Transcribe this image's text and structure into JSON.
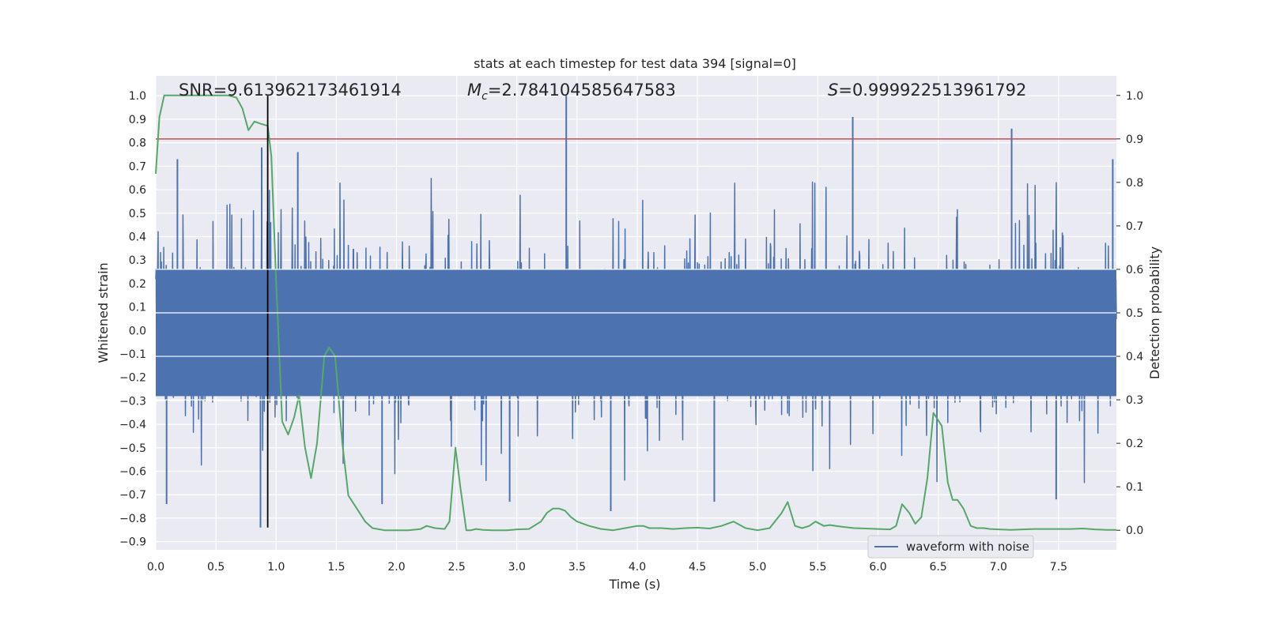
{
  "chart_data": {
    "type": "line",
    "title": "stats at each timestep for test data 394 [signal=0]",
    "xlabel": "Time (s)",
    "ylabel_left": "Whitened strain",
    "ylabel_right": "Detection probability",
    "xlim": [
      0.0,
      7.98
    ],
    "ylim_left": [
      -0.935,
      1.085
    ],
    "ylim_right": [
      -0.045,
      1.045
    ],
    "x_ticks": [
      "0.0",
      "0.5",
      "1.0",
      "1.5",
      "2.0",
      "2.5",
      "3.0",
      "3.5",
      "4.0",
      "4.5",
      "5.0",
      "5.5",
      "6.0",
      "6.5",
      "7.0",
      "7.5"
    ],
    "y_left_ticks": [
      "−0.9",
      "−0.8",
      "−0.7",
      "−0.6",
      "−0.5",
      "−0.4",
      "−0.3",
      "−0.2",
      "−0.1",
      "0.0",
      "0.1",
      "0.2",
      "0.3",
      "0.4",
      "0.5",
      "0.6",
      "0.7",
      "0.8",
      "0.9",
      "1.0"
    ],
    "y_right_ticks": [
      "0.0",
      "0.1",
      "0.2",
      "0.3",
      "0.4",
      "0.5",
      "0.6",
      "0.7",
      "0.8",
      "0.9",
      "1.0"
    ],
    "grid": true,
    "legend": {
      "placement": "lower-right",
      "entries": [
        "waveform with noise"
      ]
    },
    "annotations": {
      "snr": {
        "label": "SNR",
        "value": "=9.613962173461914"
      },
      "mc": {
        "label": "M",
        "sub": "c",
        "value": "=2.784104585647583"
      },
      "s": {
        "label": "S",
        "value": "=0.999922513961792"
      }
    },
    "threshold_right": 0.9,
    "marker_time": 0.93,
    "marker_strain_range": [
      -0.84,
      1.0
    ],
    "series": [
      {
        "name": "waveform with noise",
        "axis": "left",
        "style": "noise-trace",
        "core_amplitude": 0.3,
        "envelope_amplitude": 0.6,
        "peaks": [
          {
            "x": 0.88,
            "y": 0.78
          },
          {
            "x": 0.87,
            "y": -0.84
          },
          {
            "x": 3.41,
            "y": 1.0
          },
          {
            "x": 5.79,
            "y": 0.91
          },
          {
            "x": 7.11,
            "y": 0.86
          },
          {
            "x": 7.95,
            "y": 0.73
          },
          {
            "x": 0.09,
            "y": -0.74
          },
          {
            "x": 0.18,
            "y": 0.73
          },
          {
            "x": 1.18,
            "y": 0.76
          },
          {
            "x": 2.94,
            "y": -0.73
          },
          {
            "x": 3.78,
            "y": -0.77
          },
          {
            "x": 4.64,
            "y": -0.73
          },
          {
            "x": 7.48,
            "y": -0.72
          },
          {
            "x": 1.88,
            "y": -0.74
          }
        ]
      },
      {
        "name": "",
        "axis": "right",
        "style": "probability-line",
        "x": [
          0.0,
          0.03,
          0.07,
          0.12,
          0.2,
          0.3,
          0.4,
          0.5,
          0.6,
          0.67,
          0.72,
          0.77,
          0.82,
          0.87,
          0.93,
          0.96,
          1.0,
          1.05,
          1.1,
          1.15,
          1.19,
          1.24,
          1.29,
          1.34,
          1.4,
          1.44,
          1.49,
          1.55,
          1.6,
          1.67,
          1.74,
          1.8,
          1.9,
          2.0,
          2.1,
          2.2,
          2.25,
          2.32,
          2.4,
          2.44,
          2.49,
          2.53,
          2.58,
          2.62,
          2.66,
          2.72,
          2.8,
          2.92,
          3.0,
          3.1,
          3.2,
          3.25,
          3.3,
          3.35,
          3.4,
          3.45,
          3.5,
          3.6,
          3.7,
          3.8,
          3.9,
          4.0,
          4.05,
          4.1,
          4.2,
          4.3,
          4.4,
          4.5,
          4.6,
          4.7,
          4.8,
          4.9,
          5.0,
          5.1,
          5.2,
          5.25,
          5.31,
          5.37,
          5.43,
          5.48,
          5.55,
          5.6,
          5.65,
          5.7,
          5.8,
          5.9,
          6.0,
          6.1,
          6.15,
          6.2,
          6.26,
          6.31,
          6.36,
          6.41,
          6.46,
          6.53,
          6.58,
          6.62,
          6.66,
          6.71,
          6.77,
          6.82,
          6.88,
          6.93,
          7.0,
          7.1,
          7.2,
          7.3,
          7.4,
          7.5,
          7.6,
          7.7,
          7.8,
          7.9,
          7.98
        ],
        "values": [
          0.82,
          0.95,
          1.0,
          1.0,
          1.0,
          1.0,
          1.0,
          1.0,
          1.0,
          0.995,
          0.97,
          0.92,
          0.94,
          0.935,
          0.93,
          0.86,
          0.57,
          0.25,
          0.22,
          0.26,
          0.31,
          0.19,
          0.12,
          0.2,
          0.4,
          0.42,
          0.4,
          0.2,
          0.08,
          0.05,
          0.02,
          0.005,
          0.0,
          0.0,
          0.0,
          0.003,
          0.01,
          0.005,
          0.003,
          0.02,
          0.19,
          0.1,
          0.0,
          0.0,
          0.003,
          0.001,
          0.0,
          0.0,
          0.002,
          0.003,
          0.02,
          0.04,
          0.05,
          0.05,
          0.045,
          0.03,
          0.02,
          0.01,
          0.003,
          0.0,
          0.005,
          0.01,
          0.01,
          0.005,
          0.005,
          0.003,
          0.005,
          0.006,
          0.004,
          0.01,
          0.02,
          0.005,
          0.0,
          0.005,
          0.04,
          0.065,
          0.01,
          0.005,
          0.01,
          0.02,
          0.01,
          0.012,
          0.01,
          0.008,
          0.005,
          0.004,
          0.003,
          0.002,
          0.01,
          0.06,
          0.04,
          0.015,
          0.03,
          0.12,
          0.27,
          0.24,
          0.11,
          0.07,
          0.07,
          0.05,
          0.01,
          0.005,
          0.005,
          0.003,
          0.002,
          0.001,
          0.002,
          0.003,
          0.003,
          0.003,
          0.003,
          0.004,
          0.002,
          0.001,
          0.001
        ]
      }
    ]
  },
  "colors": {
    "plot_bg": "#eaeaf2",
    "grid": "#ffffff",
    "strain": "#4c72b0",
    "probability": "#55a868",
    "threshold": "#c44e52",
    "marker": "#000000",
    "text": "#262626"
  }
}
